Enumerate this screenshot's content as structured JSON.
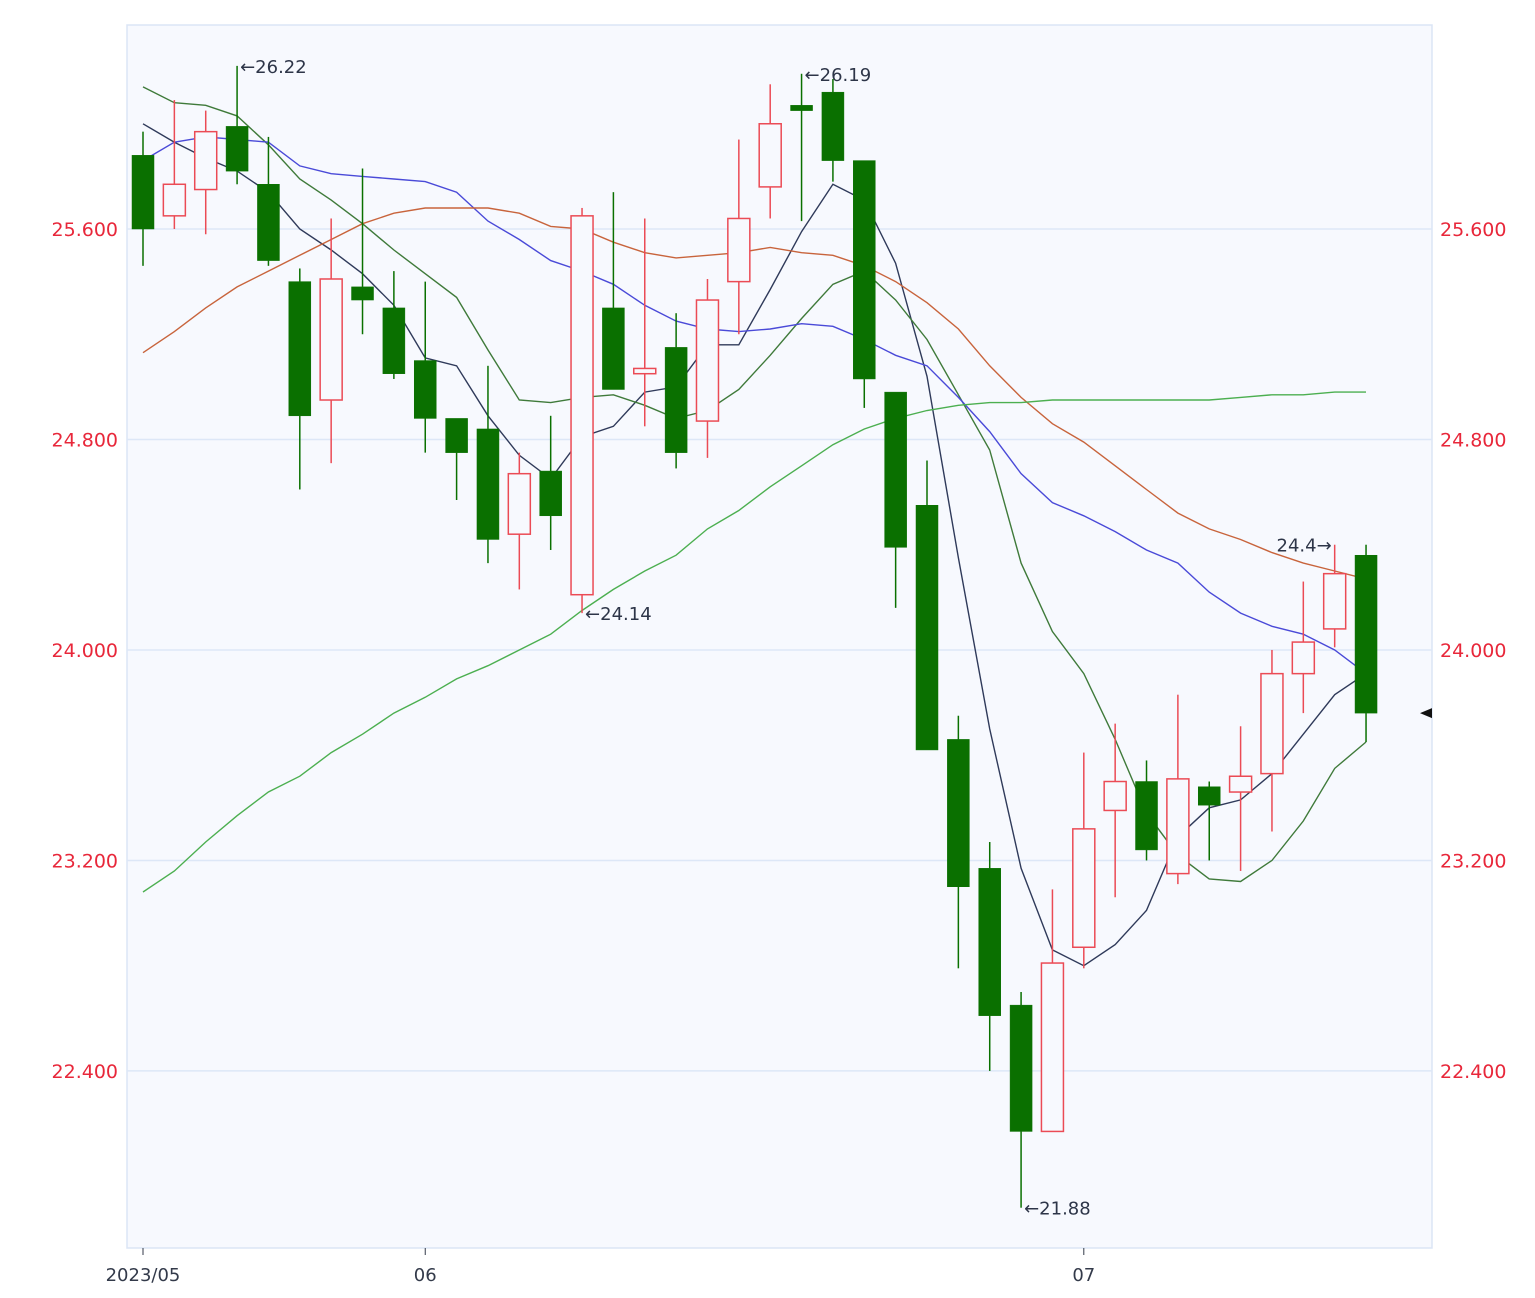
{
  "chart_data": {
    "type": "candlestick",
    "title": "",
    "xlabel": "",
    "ylabel": "",
    "x": [
      0,
      1,
      2,
      3,
      4,
      5,
      6,
      7,
      8,
      9,
      10,
      11,
      12,
      13,
      14,
      15,
      16,
      17,
      18,
      19,
      20,
      21,
      22,
      23,
      24,
      25,
      26,
      27,
      28,
      29,
      30,
      31,
      32,
      33,
      34,
      35,
      36,
      37,
      38,
      39
    ],
    "x_tick_labels": [
      {
        "index": 0,
        "label": "2023/05"
      },
      {
        "index": 9,
        "label": "06"
      },
      {
        "index": 30,
        "label": "07"
      }
    ],
    "ylim": [
      21.73,
      26.37
    ],
    "y_ticks": [
      "22.400",
      "23.200",
      "24.000",
      "24.800",
      "25.600"
    ],
    "y_tick_values": [
      22.4,
      23.2,
      24.0,
      24.8,
      25.6
    ],
    "grid": true,
    "ohlc": [
      [
        25.88,
        25.97,
        25.46,
        25.6
      ],
      [
        25.65,
        26.09,
        25.6,
        25.77
      ],
      [
        25.75,
        26.05,
        25.58,
        25.97
      ],
      [
        25.99,
        26.22,
        25.77,
        25.82
      ],
      [
        25.77,
        25.95,
        25.46,
        25.48
      ],
      [
        25.4,
        25.45,
        24.61,
        24.89
      ],
      [
        24.95,
        25.64,
        24.71,
        25.41
      ],
      [
        25.38,
        25.83,
        25.2,
        25.33
      ],
      [
        25.3,
        25.44,
        25.03,
        25.05
      ],
      [
        25.1,
        25.4,
        24.75,
        24.88
      ],
      [
        24.88,
        24.88,
        24.57,
        24.75
      ],
      [
        24.84,
        25.08,
        24.33,
        24.42
      ],
      [
        24.44,
        24.75,
        24.23,
        24.67
      ],
      [
        24.68,
        24.89,
        24.38,
        24.51
      ],
      [
        24.21,
        25.68,
        24.14,
        25.65
      ],
      [
        25.3,
        25.74,
        24.99,
        24.99
      ],
      [
        25.05,
        25.64,
        24.85,
        25.07
      ],
      [
        25.15,
        25.28,
        24.69,
        24.75
      ],
      [
        24.87,
        25.41,
        24.73,
        25.33
      ],
      [
        25.4,
        25.94,
        25.2,
        25.64
      ],
      [
        25.76,
        26.15,
        25.64,
        26.0
      ],
      [
        26.07,
        26.19,
        25.63,
        26.05
      ],
      [
        26.12,
        26.17,
        25.78,
        25.86
      ],
      [
        25.86,
        25.86,
        24.92,
        25.03
      ],
      [
        24.98,
        24.98,
        24.16,
        24.39
      ],
      [
        24.55,
        24.72,
        23.62,
        23.62
      ],
      [
        23.66,
        23.75,
        22.79,
        23.1
      ],
      [
        23.17,
        23.27,
        22.4,
        22.61
      ],
      [
        22.65,
        22.7,
        21.88,
        22.17
      ],
      [
        22.17,
        23.09,
        22.17,
        22.81
      ],
      [
        22.87,
        23.61,
        22.79,
        23.32
      ],
      [
        23.39,
        23.72,
        23.06,
        23.5
      ],
      [
        23.5,
        23.58,
        23.2,
        23.24
      ],
      [
        23.15,
        23.83,
        23.11,
        23.51
      ],
      [
        23.48,
        23.5,
        23.2,
        23.41
      ],
      [
        23.46,
        23.71,
        23.16,
        23.52
      ],
      [
        23.53,
        24.0,
        23.31,
        23.91
      ],
      [
        23.91,
        24.26,
        23.76,
        24.03
      ],
      [
        24.08,
        24.4,
        24.01,
        24.29
      ],
      [
        24.36,
        24.4,
        23.65,
        23.76
      ]
    ],
    "ohlc_fields": [
      "open",
      "high",
      "low",
      "close"
    ],
    "up_color": "#eb4b55",
    "down_color": "#0a7000",
    "series": [
      {
        "type": "line",
        "color": "#2f3a5a",
        "values": [
          26.0,
          25.93,
          25.87,
          25.82,
          25.74,
          25.6,
          25.52,
          25.43,
          25.31,
          25.11,
          25.08,
          24.89,
          24.74,
          24.65,
          24.81,
          24.85,
          24.98,
          25.0,
          25.16,
          25.16,
          25.37,
          25.59,
          25.77,
          25.71,
          25.47,
          25.04,
          24.35,
          23.7,
          23.17,
          22.86,
          22.8,
          22.88,
          23.01,
          23.29,
          23.4,
          23.43,
          23.53,
          23.68,
          23.83,
          23.91
        ]
      },
      {
        "type": "line",
        "color": "#3f7a3a",
        "values": [
          26.14,
          26.08,
          26.07,
          26.03,
          25.92,
          25.79,
          25.71,
          25.62,
          25.52,
          25.43,
          25.34,
          25.14,
          24.95,
          24.94,
          24.96,
          24.97,
          24.93,
          24.88,
          24.91,
          24.99,
          25.12,
          25.26,
          25.39,
          25.44,
          25.33,
          25.18,
          24.97,
          24.76,
          24.33,
          24.07,
          23.91,
          23.66,
          23.38,
          23.22,
          23.13,
          23.12,
          23.2,
          23.35,
          23.55,
          23.65
        ]
      },
      {
        "type": "line",
        "color": "#4a4ad8",
        "values": [
          25.86,
          25.93,
          25.95,
          25.94,
          25.93,
          25.84,
          25.81,
          25.8,
          25.79,
          25.78,
          25.74,
          25.63,
          25.56,
          25.48,
          25.44,
          25.39,
          25.31,
          25.25,
          25.22,
          25.21,
          25.22,
          25.24,
          25.23,
          25.18,
          25.12,
          25.08,
          24.96,
          24.83,
          24.67,
          24.56,
          24.51,
          24.45,
          24.38,
          24.33,
          24.22,
          24.14,
          24.09,
          24.06,
          24.0,
          23.91
        ]
      },
      {
        "type": "line",
        "color": "#c8643c",
        "values": [
          25.13,
          25.21,
          25.3,
          25.38,
          25.44,
          25.5,
          25.56,
          25.62,
          25.66,
          25.68,
          25.68,
          25.68,
          25.66,
          25.61,
          25.6,
          25.55,
          25.51,
          25.49,
          25.5,
          25.51,
          25.53,
          25.51,
          25.5,
          25.46,
          25.4,
          25.32,
          25.22,
          25.08,
          24.96,
          24.86,
          24.79,
          24.7,
          24.61,
          24.52,
          24.46,
          24.42,
          24.37,
          24.33,
          24.3,
          24.27
        ]
      },
      {
        "type": "line",
        "color": "#4caf50",
        "values": [
          23.08,
          23.16,
          23.27,
          23.37,
          23.46,
          23.52,
          23.61,
          23.68,
          23.76,
          23.82,
          23.89,
          23.94,
          24.0,
          24.06,
          24.15,
          24.23,
          24.3,
          24.36,
          24.46,
          24.53,
          24.62,
          24.7,
          24.78,
          24.84,
          24.88,
          24.91,
          24.93,
          24.94,
          24.94,
          24.95,
          24.95,
          24.95,
          24.95,
          24.95,
          24.95,
          24.96,
          24.97,
          24.97,
          24.98,
          24.98
        ]
      }
    ],
    "annotations": [
      {
        "index": 3,
        "value": 26.22,
        "text": "←26.22",
        "side": "right"
      },
      {
        "index": 21,
        "value": 26.19,
        "text": "←26.19",
        "side": "right"
      },
      {
        "index": 14,
        "value": 24.14,
        "text": "←24.14",
        "side": "right"
      },
      {
        "index": 28,
        "value": 21.88,
        "text": "←21.88",
        "side": "right"
      },
      {
        "index": 38,
        "value": 24.4,
        "text": "24.4→",
        "side": "left"
      }
    ],
    "last_price_marker": {
      "value": 23.76,
      "icon": "left-pointing-triangle"
    },
    "colors": {
      "axis_text": "#e8273a",
      "grid": "#dde7f7",
      "plot_background": "#f7f9fe",
      "border": "#dbe5f5"
    }
  }
}
